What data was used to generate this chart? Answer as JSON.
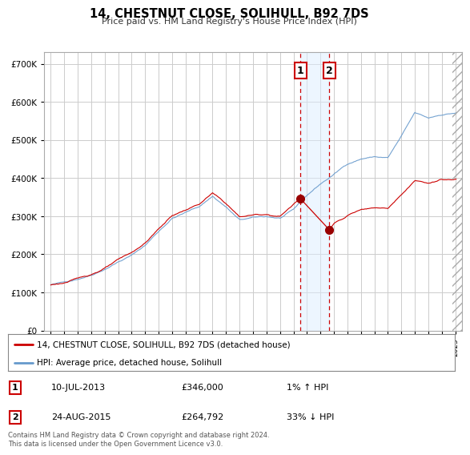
{
  "title": "14, CHESTNUT CLOSE, SOLIHULL, B92 7DS",
  "subtitle": "Price paid vs. HM Land Registry's House Price Index (HPI)",
  "red_label": "14, CHESTNUT CLOSE, SOLIHULL, B92 7DS (detached house)",
  "blue_label": "HPI: Average price, detached house, Solihull",
  "transaction1_date": "10-JUL-2013",
  "transaction1_price": 346000,
  "transaction1_hpi": "1% ↑ HPI",
  "transaction2_date": "24-AUG-2015",
  "transaction2_price": 264792,
  "transaction2_hpi": "33% ↓ HPI",
  "transaction1_x": 2013.52,
  "transaction2_x": 2015.65,
  "footer": "Contains HM Land Registry data © Crown copyright and database right 2024.\nThis data is licensed under the Open Government Licence v3.0.",
  "ylim": [
    0,
    730000
  ],
  "xlim_start": 1994.5,
  "xlim_end": 2025.5,
  "background_color": "#ffffff",
  "plot_bg_color": "#ffffff",
  "grid_color": "#cccccc",
  "red_color": "#cc0000",
  "blue_color": "#6699cc",
  "shade_color": "#ddeeff"
}
